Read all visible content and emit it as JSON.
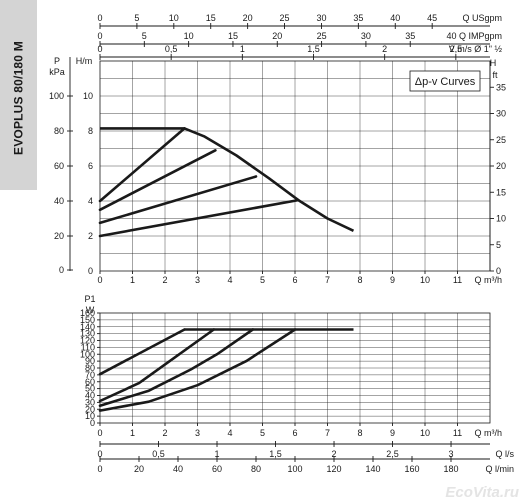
{
  "model_title": "EVOPLUS 80/180 M",
  "watermark": "EcoVita.ru",
  "chart_data": [
    {
      "type": "line",
      "name": "head",
      "legend_box": "Δp-v Curves",
      "legend_placement": "top-right",
      "grid": true,
      "x": {
        "label": "Q m³/h",
        "range": [
          0,
          12
        ],
        "ticks": [
          0,
          1,
          2,
          3,
          4,
          5,
          6,
          7,
          8,
          9,
          10,
          11
        ]
      },
      "y_left_pressure": {
        "unit": "P",
        "unit2": "kPa",
        "range": [
          0,
          120
        ],
        "ticks": [
          0,
          20,
          40,
          60,
          80,
          100
        ]
      },
      "y_left_head": {
        "unit": "H/m",
        "range": [
          0,
          12
        ],
        "ticks": [
          0,
          2,
          4,
          6,
          8,
          10
        ]
      },
      "y_right_head": {
        "unit": "H",
        "unit2": "ft",
        "range": [
          0,
          40
        ],
        "ticks": [
          0,
          5,
          10,
          15,
          20,
          25,
          30,
          35
        ]
      },
      "top_axes": [
        {
          "label": "Q USgpm",
          "range": [
            0,
            52.834
          ],
          "ticks": [
            0,
            5,
            10,
            15,
            20,
            25,
            30,
            35,
            40,
            45
          ]
        },
        {
          "label": "40 Q IMPgpm",
          "range": [
            0,
            44
          ],
          "ticks": [
            0,
            5,
            10,
            15,
            20,
            25,
            30,
            35
          ]
        },
        {
          "label": "V m/s Ø 1\" ½",
          "range": [
            0,
            2.74
          ],
          "ticks": [
            "0",
            "0,5",
            "1",
            "1,5",
            "2",
            "2,5"
          ]
        }
      ],
      "series": [
        {
          "role": "max",
          "points": [
            [
              0,
              8.15
            ],
            [
              2.6,
              8.15
            ],
            [
              3.2,
              7.7
            ],
            [
              4.2,
              6.6
            ],
            [
              5.2,
              5.3
            ],
            [
              6.1,
              4.05
            ],
            [
              7.0,
              3.0
            ],
            [
              7.8,
              2.3
            ]
          ]
        },
        {
          "role": "dp-v",
          "points": [
            [
              0,
              4.0
            ],
            [
              2.6,
              8.15
            ]
          ]
        },
        {
          "role": "dp-v",
          "points": [
            [
              0,
              3.5
            ],
            [
              3.55,
              6.9
            ]
          ]
        },
        {
          "role": "dp-v",
          "points": [
            [
              0,
              2.75
            ],
            [
              4.8,
              5.4
            ]
          ]
        },
        {
          "role": "dp-v",
          "points": [
            [
              0,
              2.0
            ],
            [
              6.1,
              4.05
            ]
          ]
        }
      ]
    },
    {
      "type": "line",
      "name": "power",
      "grid": true,
      "x": {
        "label": "Q m³/h",
        "range": [
          0,
          12
        ],
        "ticks": [
          0,
          1,
          2,
          3,
          4,
          5,
          6,
          7,
          8,
          9,
          10,
          11
        ]
      },
      "y": {
        "unit": "P1",
        "unit2": "W",
        "range": [
          0,
          160
        ],
        "ticks": [
          0,
          10,
          20,
          30,
          40,
          50,
          60,
          70,
          80,
          90,
          100,
          110,
          120,
          130,
          140,
          150,
          160
        ]
      },
      "bottom_axes": [
        {
          "label": "Q l/s",
          "range": [
            0,
            3.333
          ],
          "ticks": [
            "0",
            "0,5",
            "1",
            "1,5",
            "2",
            "2,5",
            "3"
          ]
        },
        {
          "label": "Q l/min",
          "range": [
            0,
            200
          ],
          "ticks": [
            0,
            20,
            40,
            60,
            80,
            100,
            120,
            140,
            160,
            180
          ]
        }
      ],
      "series": [
        {
          "role": "max",
          "points": [
            [
              2.6,
              136
            ],
            [
              7.8,
              136
            ]
          ]
        },
        {
          "role": "dp-v",
          "points": [
            [
              0,
              71
            ],
            [
              2.6,
              136
            ]
          ]
        },
        {
          "role": "dp-v",
          "points": [
            [
              0,
              32
            ],
            [
              1.2,
              58
            ],
            [
              2.2,
              92
            ],
            [
              3.5,
              136
            ]
          ]
        },
        {
          "role": "dp-v",
          "points": [
            [
              0,
              25
            ],
            [
              1.5,
              47
            ],
            [
              2.8,
              78
            ],
            [
              3.6,
              100
            ],
            [
              4.7,
              136
            ]
          ]
        },
        {
          "role": "dp-v",
          "points": [
            [
              0,
              18
            ],
            [
              1.5,
              31
            ],
            [
              3,
              55
            ],
            [
              4.5,
              90
            ],
            [
              6.0,
              136
            ]
          ]
        }
      ]
    }
  ]
}
